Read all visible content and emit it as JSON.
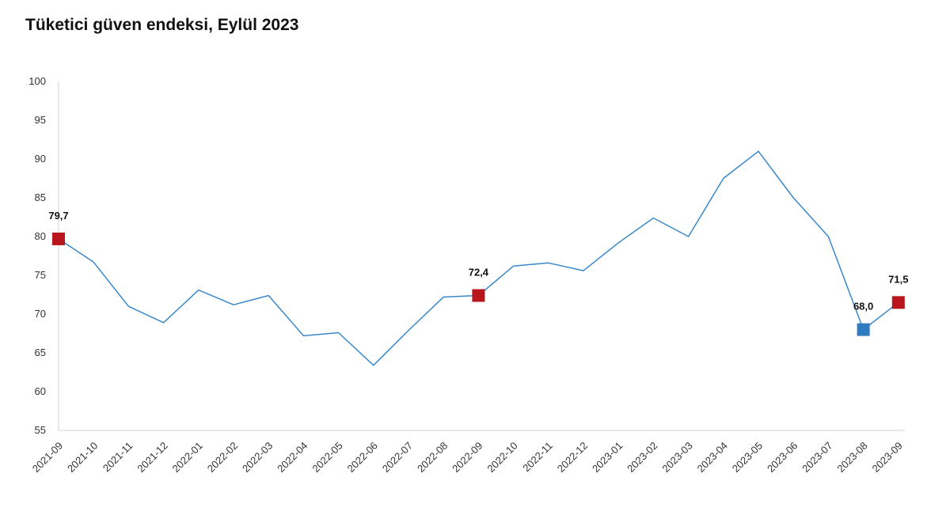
{
  "chart_data": {
    "type": "line",
    "title": "Tüketici güven endeksi, Eylül 2023",
    "xlabel": "",
    "ylabel": "",
    "ylim": [
      55,
      100
    ],
    "yticks": [
      "55",
      "60",
      "65",
      "70",
      "75",
      "80",
      "85",
      "90",
      "95",
      "100"
    ],
    "categories": [
      "2021-09",
      "2021-10",
      "2021-11",
      "2021-12",
      "2022-01",
      "2022-02",
      "2022-03",
      "2022-04",
      "2022-05",
      "2022-06",
      "2022-07",
      "2022-08",
      "2022-09",
      "2022-10",
      "2022-11",
      "2022-12",
      "2023-01",
      "2023-02",
      "2023-03",
      "2023-04",
      "2023-05",
      "2023-06",
      "2023-07",
      "2023-08",
      "2023-09"
    ],
    "series": [
      {
        "values": [
          79.7,
          76.7,
          71.0,
          68.9,
          73.1,
          71.2,
          72.4,
          67.2,
          67.6,
          63.4,
          67.9,
          72.2,
          72.4,
          76.2,
          76.6,
          75.6,
          79.2,
          82.4,
          80.0,
          87.5,
          91.0,
          85.0,
          80.0,
          68.0,
          71.5
        ],
        "color": "#3a88c9"
      }
    ],
    "highlighted_points": [
      {
        "category": "2021-09",
        "value": 79.7,
        "label": "79,7",
        "color": "#b8161c"
      },
      {
        "category": "2022-09",
        "value": 72.4,
        "label": "72,4",
        "color": "#b8161c"
      },
      {
        "category": "2023-08",
        "value": 68.0,
        "label": "68,0",
        "color": "#2e7bc0"
      },
      {
        "category": "2023-09",
        "value": 71.5,
        "label": "71,5",
        "color": "#b8161c"
      }
    ],
    "grid": false,
    "legend": "none"
  }
}
